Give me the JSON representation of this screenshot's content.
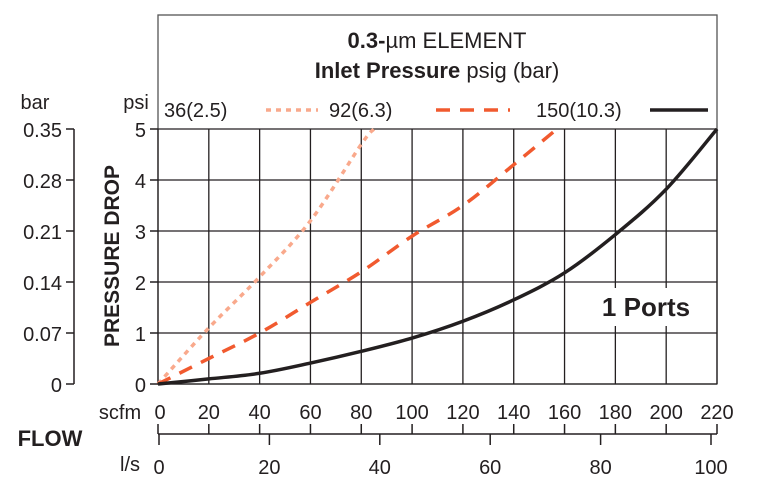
{
  "chart_data": {
    "type": "line",
    "title": "0.3-µm ELEMENT",
    "title_bold_part": "0.3-",
    "title_rest": "µm ELEMENT",
    "legend_title_bold": "Inlet Pressure",
    "legend_title_rest": "psig (bar)",
    "legend_placement": "top",
    "annotation": "1 Ports",
    "ylabel": "PRESSURE DROP",
    "xlabel": "FLOW",
    "x_unit_primary": "scfm",
    "x_unit_secondary": "l/s",
    "y_unit_primary": "psi",
    "y_unit_secondary": "bar",
    "xlim": [
      0,
      220
    ],
    "ylim": [
      0,
      5
    ],
    "grid": true,
    "x_ticks": [
      "0",
      "20",
      "40",
      "60",
      "80",
      "100",
      "120",
      "140",
      "160",
      "180",
      "200",
      "220"
    ],
    "x2_ticks": [
      "0",
      "20",
      "40",
      "60",
      "80",
      "100"
    ],
    "y_ticks": [
      "0",
      "1",
      "2",
      "3",
      "4",
      "5"
    ],
    "y2_ticks": [
      "0",
      "0.07",
      "0.14",
      "0.21",
      "0.28",
      "0.35"
    ],
    "series": [
      {
        "name": "36(2.5)",
        "style": "dotted",
        "color": "#f9a98c",
        "x": [
          0,
          20,
          40,
          60,
          80,
          85
        ],
        "y": [
          0,
          1.1,
          2.1,
          3.2,
          4.7,
          5
        ]
      },
      {
        "name": "92(6.3)",
        "style": "dashed",
        "color": "#f15a2f",
        "x": [
          0,
          20,
          40,
          60,
          80,
          100,
          120,
          140,
          157
        ],
        "y": [
          0,
          0.5,
          1.0,
          1.6,
          2.2,
          2.9,
          3.5,
          4.3,
          5
        ]
      },
      {
        "name": "150(10.3)",
        "style": "solid",
        "color": "#231f20",
        "x": [
          0,
          20,
          40,
          60,
          80,
          100,
          120,
          140,
          160,
          180,
          200,
          220
        ],
        "y": [
          0,
          0.1,
          0.21,
          0.41,
          0.64,
          0.9,
          1.23,
          1.65,
          2.18,
          2.93,
          3.82,
          5
        ]
      }
    ]
  }
}
